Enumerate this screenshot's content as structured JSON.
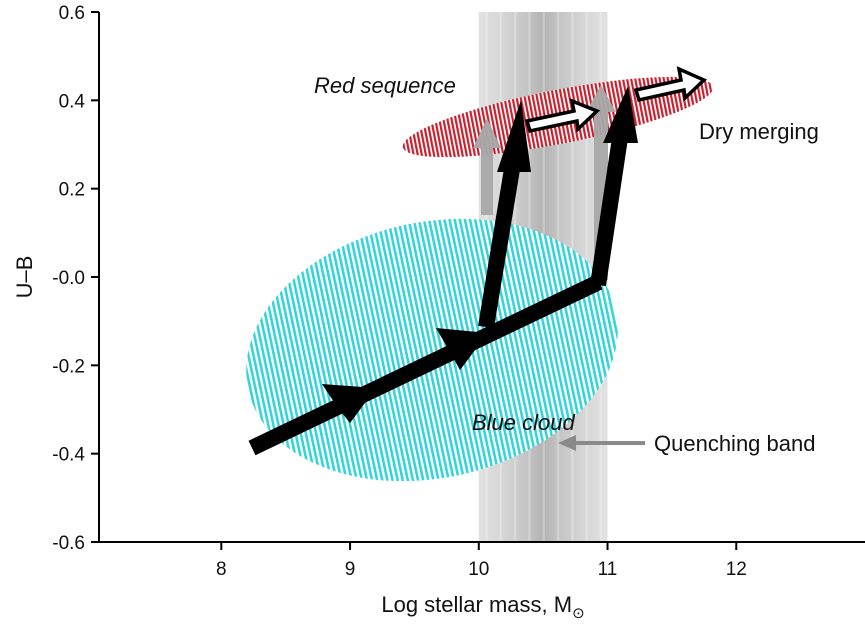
{
  "axes": {
    "xlabel": "Log stellar mass, M",
    "xlabel_subscript": "⊙",
    "ylabel": "U–B",
    "xlim": [
      7.05,
      13.0
    ],
    "ylim": [
      -0.6,
      0.6
    ],
    "x_ticks": [
      {
        "value": 8,
        "label": "8"
      },
      {
        "value": 9,
        "label": "9"
      },
      {
        "value": 10,
        "label": "10"
      },
      {
        "value": 11,
        "label": "11"
      },
      {
        "value": 12,
        "label": "12"
      }
    ],
    "y_ticks": [
      {
        "value": 0.6,
        "label": "0.6"
      },
      {
        "value": 0.4,
        "label": "0.4"
      },
      {
        "value": 0.2,
        "label": "0.2"
      },
      {
        "value": 0.0,
        "label": "-0.0"
      },
      {
        "value": -0.2,
        "label": "-0.2"
      },
      {
        "value": -0.4,
        "label": "-0.4"
      },
      {
        "value": -0.6,
        "label": "-0.6"
      }
    ]
  },
  "regions": {
    "red_sequence": {
      "label": "Red sequence",
      "color": "#c8202e"
    },
    "blue_cloud": {
      "label": "Blue cloud",
      "color": "#35d4d8"
    },
    "quenching_band": {
      "label": "Quenching band",
      "x_range": [
        10.0,
        11.0
      ],
      "color": "#9a9a9a"
    }
  },
  "annotations": {
    "dry_merging": "Dry merging"
  },
  "colors": {
    "track": "#000000",
    "quench_arrow": "#a8a8a8",
    "merge_arrow_outline": "#000000"
  }
}
